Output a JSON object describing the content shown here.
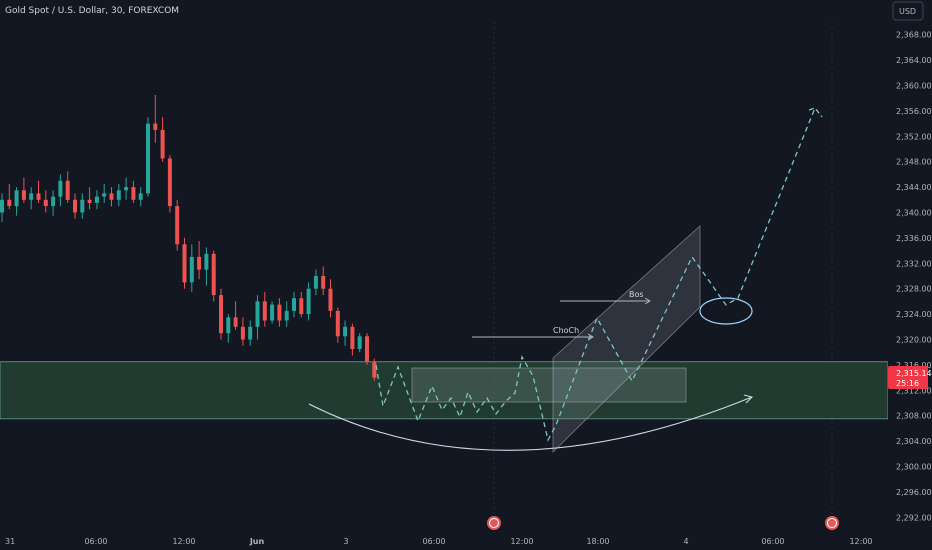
{
  "header": {
    "title": "Gold Spot / U.S. Dollar, 30, FOREXCOM",
    "currency": "USD"
  },
  "colors": {
    "background": "#131722",
    "up": "#26a69a",
    "down": "#ef5350",
    "zone": "#2e5a3c",
    "annotation": "#b2b5be",
    "projection": "#7ec8c0",
    "price_tag": "#f23645"
  },
  "price_axis": {
    "min": 2290,
    "max": 2370,
    "ticks": [
      "2,368.00",
      "2,364.00",
      "2,360.00",
      "2,356.00",
      "2,352.00",
      "2,348.00",
      "2,344.00",
      "2,340.00",
      "2,336.00",
      "2,332.00",
      "2,328.00",
      "2,324.00",
      "2,320.00",
      "2,316.00",
      "2,312.00",
      "2,308.00",
      "2,304.00",
      "2,300.00",
      "2,296.00",
      "2,292.00"
    ],
    "current_price": "2,315.14",
    "current_sub": "25:16"
  },
  "time_axis": {
    "labels": [
      "31",
      "06:00",
      "12:00",
      "Jun",
      "3",
      "06:00",
      "12:00",
      "18:00",
      "4",
      "06:00",
      "12:00"
    ]
  },
  "annotations": {
    "choch": "ChoCh",
    "bos": "Bos"
  },
  "chart_data": {
    "type": "candlestick",
    "title": "Gold Spot / U.S. Dollar, 30, FOREXCOM",
    "ylim": [
      2290,
      2370
    ],
    "bar_interval": "30m",
    "candles": [
      [
        2340.0,
        2343.0,
        2338.5,
        2342.0
      ],
      [
        2342.0,
        2344.5,
        2340.5,
        2341.0
      ],
      [
        2341.0,
        2344.0,
        2339.5,
        2343.5
      ],
      [
        2343.5,
        2345.5,
        2341.5,
        2342.0
      ],
      [
        2342.0,
        2344.0,
        2340.5,
        2343.0
      ],
      [
        2343.0,
        2345.0,
        2341.5,
        2342.0
      ],
      [
        2342.0,
        2343.5,
        2340.0,
        2341.0
      ],
      [
        2341.0,
        2343.5,
        2339.5,
        2342.5
      ],
      [
        2342.5,
        2346.0,
        2341.0,
        2345.0
      ],
      [
        2345.0,
        2346.5,
        2341.5,
        2342.0
      ],
      [
        2342.0,
        2343.0,
        2339.0,
        2340.0
      ],
      [
        2340.0,
        2343.0,
        2339.0,
        2342.0
      ],
      [
        2342.0,
        2344.0,
        2340.5,
        2341.5
      ],
      [
        2341.5,
        2343.5,
        2340.5,
        2342.5
      ],
      [
        2342.5,
        2344.5,
        2341.5,
        2343.0
      ],
      [
        2343.0,
        2344.0,
        2341.0,
        2342.0
      ],
      [
        2342.0,
        2344.5,
        2341.0,
        2343.5
      ],
      [
        2343.5,
        2345.5,
        2342.0,
        2344.0
      ],
      [
        2344.0,
        2345.0,
        2341.5,
        2342.0
      ],
      [
        2342.0,
        2344.0,
        2341.0,
        2343.0
      ],
      [
        2343.0,
        2355.0,
        2342.5,
        2354.0
      ],
      [
        2354.0,
        2358.5,
        2351.0,
        2353.0
      ],
      [
        2353.0,
        2355.0,
        2348.0,
        2348.5
      ],
      [
        2348.5,
        2349.0,
        2340.0,
        2341.0
      ],
      [
        2341.0,
        2342.0,
        2334.0,
        2335.0
      ],
      [
        2335.0,
        2336.0,
        2328.0,
        2329.0
      ],
      [
        2329.0,
        2335.0,
        2327.5,
        2333.0
      ],
      [
        2333.0,
        2335.5,
        2329.5,
        2331.0
      ],
      [
        2331.0,
        2334.5,
        2328.5,
        2333.5
      ],
      [
        2333.5,
        2334.0,
        2326.0,
        2327.0
      ],
      [
        2327.0,
        2328.0,
        2320.0,
        2321.0
      ],
      [
        2321.0,
        2324.0,
        2319.5,
        2323.5
      ],
      [
        2323.5,
        2326.0,
        2321.5,
        2322.0
      ],
      [
        2322.0,
        2323.5,
        2319.0,
        2320.0
      ],
      [
        2320.0,
        2323.0,
        2319.0,
        2322.0
      ],
      [
        2322.0,
        2327.0,
        2320.0,
        2326.0
      ],
      [
        2326.0,
        2327.5,
        2322.0,
        2323.0
      ],
      [
        2323.0,
        2326.0,
        2322.5,
        2325.5
      ],
      [
        2325.5,
        2326.5,
        2322.0,
        2323.0
      ],
      [
        2323.0,
        2326.0,
        2322.0,
        2324.5
      ],
      [
        2324.5,
        2327.5,
        2323.5,
        2326.5
      ],
      [
        2326.5,
        2327.5,
        2323.5,
        2324.0
      ],
      [
        2324.0,
        2329.0,
        2323.0,
        2328.0
      ],
      [
        2328.0,
        2331.0,
        2327.0,
        2330.0
      ],
      [
        2330.0,
        2331.5,
        2327.0,
        2328.0
      ],
      [
        2328.0,
        2329.5,
        2323.5,
        2324.5
      ],
      [
        2324.5,
        2325.0,
        2319.5,
        2320.5
      ],
      [
        2320.5,
        2323.0,
        2319.0,
        2322.0
      ],
      [
        2322.0,
        2322.5,
        2317.5,
        2318.5
      ],
      [
        2318.5,
        2321.0,
        2318.0,
        2320.5
      ],
      [
        2320.5,
        2321.0,
        2316.0,
        2316.5
      ],
      [
        2316.5,
        2317.0,
        2313.5,
        2314.0
      ]
    ],
    "support_zone": [
      2307.5,
      2316.5
    ],
    "projection_path": [
      [
        "Jun 3 04:00",
        2314
      ],
      [
        "Jun 3 05:00",
        2310
      ],
      [
        "Jun 3 06:00",
        2316
      ],
      [
        "Jun 3 07:00",
        2308
      ],
      [
        "Jun 3 08:00",
        2312
      ],
      [
        "Jun 3 09:00",
        2310
      ],
      [
        "Jun 3 10:00",
        2313
      ],
      [
        "Jun 3 11:00",
        2310
      ],
      [
        "Jun 3 12:00",
        2318
      ],
      [
        "Jun 3 13:00",
        2305
      ],
      [
        "Jun 3 15:30",
        2323
      ],
      [
        "Jun 3 17:00",
        2314
      ],
      [
        "Jun 3 21:00",
        2332
      ],
      [
        "Jun 4 01:00",
        2326
      ],
      [
        "Jun 4 05:00",
        2352
      ]
    ],
    "choch_level": 2321.5,
    "bos_level": 2326.5
  }
}
